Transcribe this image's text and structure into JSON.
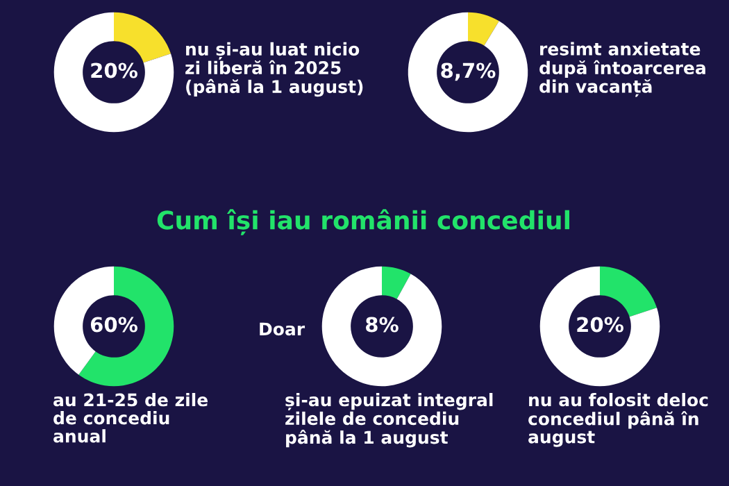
{
  "chart_data": [
    {
      "type": "donut",
      "categories": [
        null,
        null
      ],
      "values": [
        20,
        80
      ],
      "colors": [
        "#f7e02c",
        "#ffffff"
      ],
      "value_labels": [
        "20%",
        null
      ],
      "annotations": [
        "nu și-au luat nicio\nzi liberă în 2025\n(până la 1 august)"
      ]
    },
    {
      "type": "donut",
      "categories": [
        null,
        null
      ],
      "values": [
        8.7,
        91.3
      ],
      "colors": [
        "#f7e02c",
        "#ffffff"
      ],
      "value_labels": [
        "8,7%",
        null
      ],
      "annotations": [
        "resimt anxietate\ndupă întoarcerea\ndin vacanță"
      ]
    },
    {
      "type": "other",
      "title": "Cum își iau românii concediul"
    },
    {
      "type": "donut",
      "categories": [
        null,
        null
      ],
      "values": [
        60,
        40
      ],
      "colors": [
        "#22e36a",
        "#ffffff"
      ],
      "value_labels": [
        "60%",
        null
      ],
      "annotations": [
        "au 21-25 de zile\nde concediu\nanual"
      ]
    },
    {
      "type": "donut",
      "categories": [
        null,
        null
      ],
      "values": [
        8,
        92
      ],
      "colors": [
        "#22e36a",
        "#ffffff"
      ],
      "value_labels": [
        "8%",
        null
      ],
      "annotations": [
        "Doar",
        "și-au epuizat integral\nzilele de concediu\npână la 1 august"
      ]
    },
    {
      "type": "donut",
      "categories": [
        null,
        null
      ],
      "values": [
        20,
        80
      ],
      "colors": [
        "#22e36a",
        "#ffffff"
      ],
      "value_labels": [
        "20%",
        null
      ],
      "annotations": [
        "nu au folosit deloc\nconcediul până în\naugust"
      ]
    }
  ]
}
